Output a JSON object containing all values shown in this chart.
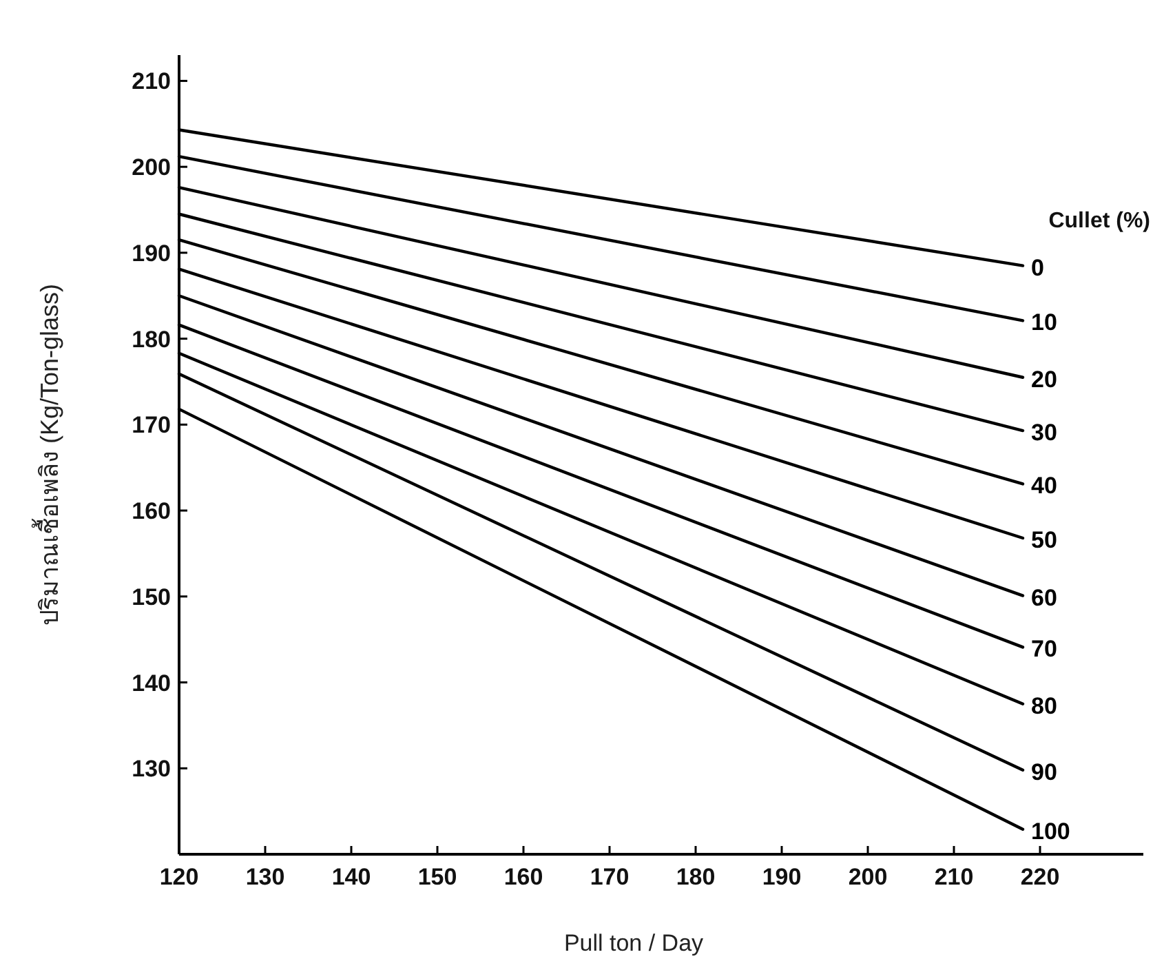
{
  "chart_data": {
    "type": "line",
    "xlabel": "Pull ton / Day",
    "ylabel": "ปริมาณเชื้อเพลิง (Kg/Ton-glass)",
    "legend_title": "Cullet (%)",
    "xlim": [
      120,
      232
    ],
    "ylim": [
      120,
      213
    ],
    "xticks": [
      120,
      130,
      140,
      150,
      160,
      170,
      180,
      190,
      200,
      210,
      220
    ],
    "yticks": [
      130,
      140,
      150,
      160,
      170,
      180,
      190,
      200,
      210
    ],
    "grid": false,
    "marker": "none",
    "line_style": "solid",
    "x": [
      120,
      218
    ],
    "series": [
      {
        "name": "0",
        "color": "#000000",
        "values": [
          204.3,
          188.5
        ]
      },
      {
        "name": "10",
        "color": "#000000",
        "values": [
          201.2,
          182.1
        ]
      },
      {
        "name": "20",
        "color": "#000000",
        "values": [
          197.6,
          175.5
        ]
      },
      {
        "name": "30",
        "color": "#000000",
        "values": [
          194.5,
          169.3
        ]
      },
      {
        "name": "40",
        "color": "#000000",
        "values": [
          191.5,
          163.1
        ]
      },
      {
        "name": "50",
        "color": "#000000",
        "values": [
          188.1,
          156.8
        ]
      },
      {
        "name": "60",
        "color": "#000000",
        "values": [
          185.0,
          150.1
        ]
      },
      {
        "name": "70",
        "color": "#000000",
        "values": [
          181.6,
          144.1
        ]
      },
      {
        "name": "80",
        "color": "#000000",
        "values": [
          178.3,
          137.5
        ]
      },
      {
        "name": "90",
        "color": "#000000",
        "values": [
          175.9,
          129.8
        ]
      },
      {
        "name": "100",
        "color": "#000000",
        "values": [
          171.8,
          122.9
        ]
      }
    ]
  }
}
